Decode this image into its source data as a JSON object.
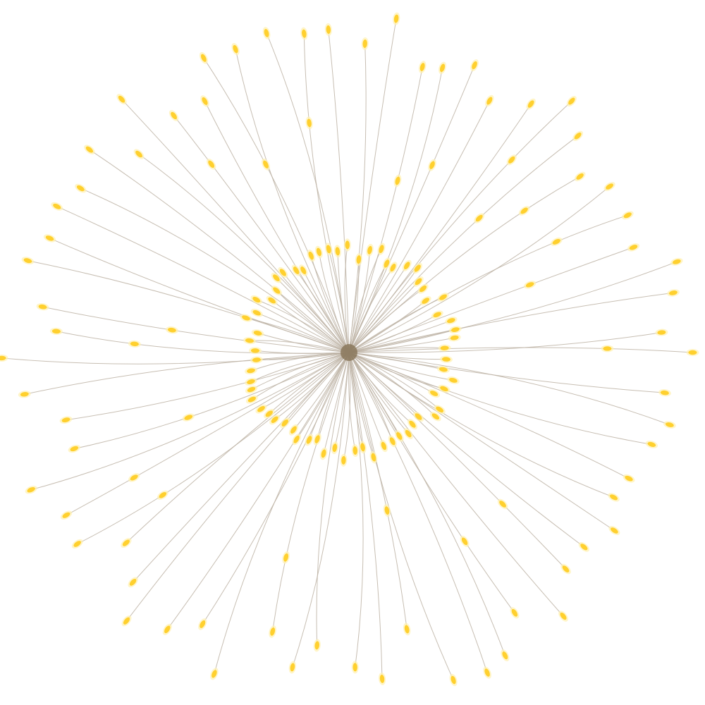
{
  "image": {
    "subject": "starburst-led-light",
    "colors": {
      "background": "#ffffff",
      "wire": "#bdb3a5",
      "led": "#ffd02e",
      "led_glow": "#fff1b0",
      "hub": "#7d6a4a"
    }
  }
}
